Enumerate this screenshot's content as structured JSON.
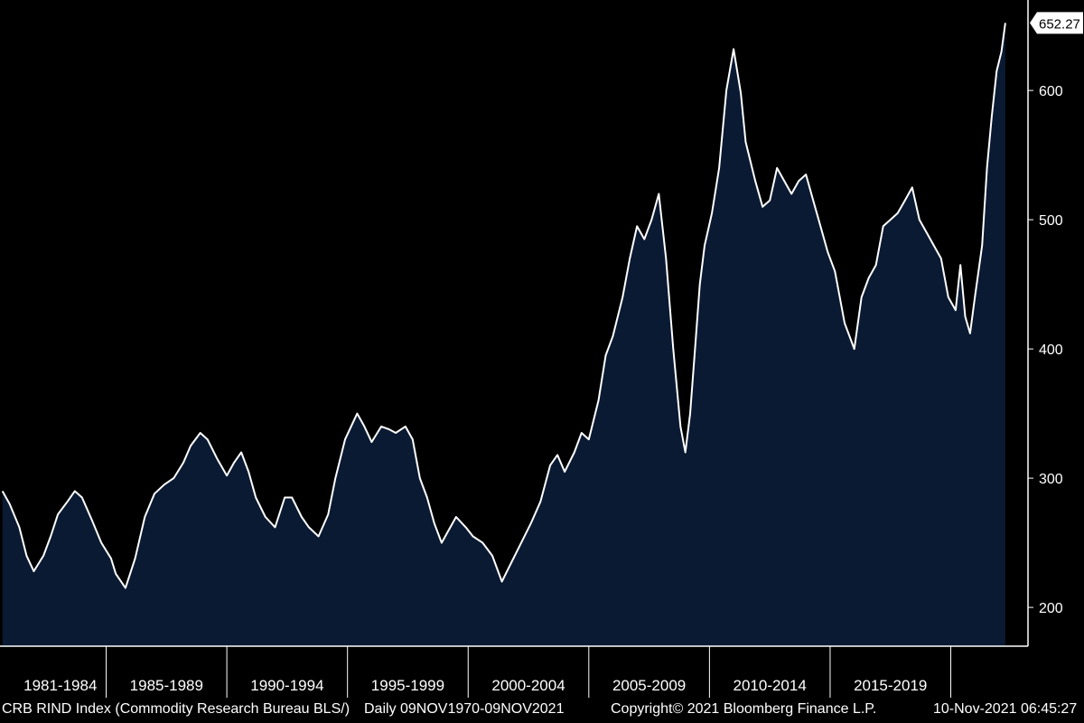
{
  "chart_data": {
    "type": "area",
    "ylim": [
      170,
      670
    ],
    "y_ticks": [
      200,
      300,
      400,
      500,
      600
    ],
    "last_value_label": "652.27",
    "x_period_labels": [
      "1981-1984",
      "1985-1989",
      "1990-1994",
      "1995-1999",
      "2000-2004",
      "2005-2009",
      "2010-2014",
      "2015-2019"
    ],
    "xlim": [
      1980.2,
      2022.8
    ],
    "x": [
      1980.3,
      1980.6,
      1981.0,
      1981.3,
      1981.6,
      1982.0,
      1982.3,
      1982.6,
      1983.0,
      1983.3,
      1983.6,
      1984.0,
      1984.4,
      1984.8,
      1985.0,
      1985.4,
      1985.8,
      1986.2,
      1986.6,
      1987.0,
      1987.4,
      1987.8,
      1988.1,
      1988.5,
      1988.8,
      1989.2,
      1989.6,
      1989.9,
      1990.2,
      1990.5,
      1990.8,
      1991.2,
      1991.6,
      1992.0,
      1992.3,
      1992.7,
      1993.0,
      1993.4,
      1993.8,
      1994.1,
      1994.5,
      1995.0,
      1995.3,
      1995.6,
      1996.0,
      1996.3,
      1996.6,
      1997.0,
      1997.3,
      1997.6,
      1997.9,
      1998.2,
      1998.5,
      1998.8,
      1999.1,
      1999.5,
      1999.8,
      2000.2,
      2000.6,
      2001.0,
      2001.4,
      2001.8,
      2002.2,
      2002.6,
      2003.0,
      2003.3,
      2003.6,
      2004.0,
      2004.3,
      2004.6,
      2005.0,
      2005.3,
      2005.6,
      2006.0,
      2006.3,
      2006.6,
      2006.9,
      2007.2,
      2007.5,
      2007.8,
      2008.1,
      2008.4,
      2008.6,
      2008.8,
      2009.0,
      2009.2,
      2009.4,
      2009.7,
      2010.0,
      2010.3,
      2010.6,
      2010.9,
      2011.1,
      2011.3,
      2011.5,
      2011.8,
      2012.1,
      2012.4,
      2012.7,
      2013.0,
      2013.3,
      2013.6,
      2013.9,
      2014.2,
      2014.5,
      2014.8,
      2015.2,
      2015.6,
      2015.9,
      2016.2,
      2016.5,
      2016.8,
      2017.1,
      2017.4,
      2017.7,
      2018.0,
      2018.3,
      2018.6,
      2018.9,
      2019.2,
      2019.5,
      2019.8,
      2020.0,
      2020.2,
      2020.4,
      2020.6,
      2020.9,
      2021.1,
      2021.3,
      2021.5,
      2021.7,
      2021.86
    ],
    "y": [
      290,
      280,
      262,
      240,
      228,
      240,
      255,
      272,
      282,
      290,
      285,
      268,
      250,
      238,
      226,
      215,
      238,
      270,
      288,
      295,
      300,
      312,
      325,
      335,
      330,
      315,
      302,
      312,
      320,
      305,
      285,
      270,
      262,
      285,
      285,
      270,
      262,
      255,
      272,
      300,
      330,
      350,
      340,
      328,
      340,
      338,
      335,
      340,
      330,
      300,
      285,
      265,
      250,
      260,
      270,
      262,
      255,
      250,
      240,
      220,
      235,
      250,
      265,
      282,
      310,
      318,
      305,
      320,
      335,
      330,
      360,
      395,
      410,
      440,
      470,
      495,
      485,
      500,
      520,
      470,
      400,
      340,
      320,
      350,
      400,
      450,
      480,
      505,
      540,
      600,
      632,
      598,
      560,
      545,
      530,
      510,
      515,
      540,
      530,
      520,
      530,
      535,
      515,
      495,
      475,
      460,
      420,
      400,
      440,
      455,
      465,
      495,
      500,
      505,
      515,
      525,
      500,
      490,
      480,
      470,
      440,
      430,
      465,
      425,
      412,
      440,
      480,
      540,
      580,
      615,
      630,
      652.27
    ],
    "area_color": "#0b1a33",
    "line_color": "#ffffff"
  },
  "footer": {
    "description": "CRB RIND Index (Commodity Research Bureau BLS/)",
    "range": "Daily 09NOV1970-09NOV2021",
    "copyright": "Copyright© 2021 Bloomberg Finance L.P.",
    "timestamp": "10-Nov-2021 06:45:27"
  }
}
